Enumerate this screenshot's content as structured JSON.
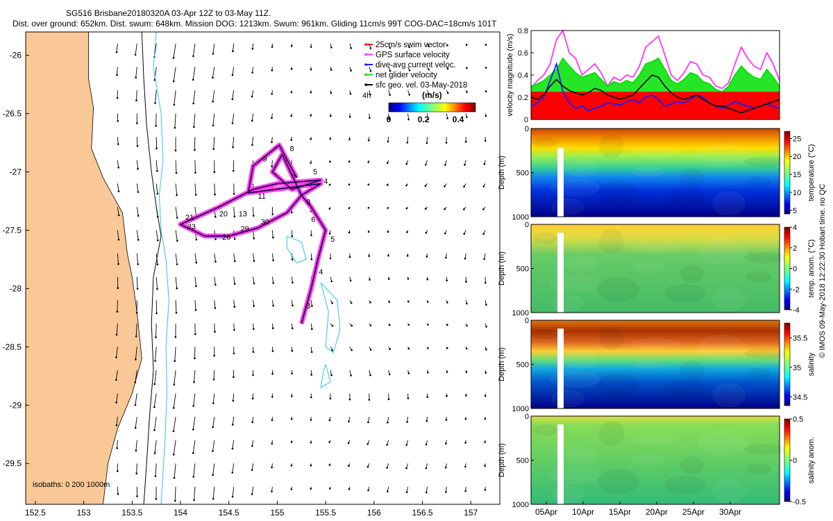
{
  "header": {
    "title_line1": "SG516 Brisbane20180320A 03-Apr 12Z to 03-May 11Z.",
    "title_line2": "Dist. over ground: 652km. Dist. swum: 648km. Mission DOG: 1213km. Swum: 961km. Gliding 11cm/s 99T COG-DAC=18cm/s 101T"
  },
  "footer": {
    "credit": "© IMOS 09-May-2018 12:22:30 Hobart time. no QC"
  },
  "colors": {
    "land": "#f9c896",
    "coast_line": "#000000",
    "isobath_200": "#000000",
    "isobath_1000": "#22c8ee",
    "swim_vector": "#ff0000",
    "gps_velocity": "#ff33ff",
    "dive_avg": "#1a1aff",
    "net_glider": "#00e000",
    "sfc_geo": "#000000"
  },
  "chart_data": [
    {
      "id": "map",
      "type": "scatter",
      "xlim": [
        152.4,
        157.3
      ],
      "ylim": [
        -29.85,
        -25.8
      ],
      "xticks": [
        152.5,
        153,
        153.5,
        154,
        154.5,
        155,
        155.5,
        156,
        156.5,
        157
      ],
      "xtick_labels": [
        "152.5",
        "153",
        "153.5",
        "154",
        "154.5",
        "155",
        "155.5",
        "156",
        "156.5",
        "157"
      ],
      "yticks": [
        -26,
        -26.5,
        -27,
        -27.5,
        -28,
        -28.5,
        -29,
        -29.5
      ],
      "ytick_labels": [
        "-26",
        "-26.5",
        "-27",
        "-27.5",
        "-28",
        "-28.5",
        "-29",
        "-29.5"
      ],
      "legend": {
        "placement": "top-right",
        "entries": [
          "25cm/s swim vector",
          "GPS surface velocity",
          "dive-avg current veloc.",
          "net glider velocity",
          "sfc geo. vel. 03-May-2018"
        ],
        "colors": [
          "#ff0000",
          "#ff33ff",
          "#1a1aff",
          "#00e000",
          "#000000"
        ]
      },
      "colorbar": {
        "label": "(m/s)",
        "ticks": [
          "0",
          "0.2",
          "0.4"
        ],
        "range": [
          0,
          0.5
        ],
        "note": "4h"
      },
      "isobath_note": "isobaths: 0   200   1000m",
      "coastline": [
        [
          153.05,
          -25.8
        ],
        [
          153.05,
          -26.2
        ],
        [
          153.1,
          -26.45
        ],
        [
          153.08,
          -26.8
        ],
        [
          153.2,
          -27.05
        ],
        [
          153.4,
          -27.35
        ],
        [
          153.45,
          -27.7
        ],
        [
          153.5,
          -27.9
        ],
        [
          153.55,
          -28.2
        ],
        [
          153.6,
          -28.6
        ],
        [
          153.5,
          -28.9
        ],
        [
          153.35,
          -29.2
        ],
        [
          153.25,
          -29.5
        ],
        [
          153.2,
          -29.85
        ]
      ],
      "isobath_200": [
        [
          153.6,
          -25.8
        ],
        [
          153.62,
          -26.2
        ],
        [
          153.65,
          -26.6
        ],
        [
          153.7,
          -27.0
        ],
        [
          153.75,
          -27.3
        ],
        [
          153.8,
          -27.55
        ],
        [
          153.72,
          -27.9
        ],
        [
          153.7,
          -28.3
        ],
        [
          153.72,
          -28.7
        ],
        [
          153.68,
          -29.1
        ],
        [
          153.65,
          -29.5
        ],
        [
          153.62,
          -29.85
        ]
      ],
      "isobath_1000": [
        [
          [
            153.75,
            -25.8
          ],
          [
            153.72,
            -26.1
          ],
          [
            153.8,
            -26.5
          ],
          [
            153.82,
            -26.9
          ],
          [
            153.78,
            -27.2
          ],
          [
            153.8,
            -27.5
          ],
          [
            153.85,
            -27.75
          ],
          [
            153.88,
            -28.1
          ],
          [
            153.85,
            -28.5
          ],
          [
            153.86,
            -28.9
          ],
          [
            153.84,
            -29.3
          ],
          [
            153.8,
            -29.85
          ]
        ],
        [
          [
            155.1,
            -27.55
          ],
          [
            155.25,
            -27.6
          ],
          [
            155.3,
            -27.75
          ],
          [
            155.2,
            -27.78
          ],
          [
            155.1,
            -27.65
          ],
          [
            155.1,
            -27.55
          ]
        ],
        [
          [
            155.45,
            -27.95
          ],
          [
            155.62,
            -28.1
          ],
          [
            155.65,
            -28.35
          ],
          [
            155.58,
            -28.55
          ],
          [
            155.5,
            -28.5
          ],
          [
            155.53,
            -28.2
          ],
          [
            155.45,
            -27.95
          ]
        ],
        [
          [
            155.5,
            -28.65
          ],
          [
            155.55,
            -28.8
          ],
          [
            155.45,
            -28.85
          ],
          [
            155.48,
            -28.7
          ],
          [
            155.5,
            -28.65
          ]
        ]
      ],
      "track": [
        [
          155.25,
          -28.3
        ],
        [
          155.35,
          -28.0
        ],
        [
          155.42,
          -27.75
        ],
        [
          155.5,
          -27.5
        ],
        [
          155.35,
          -27.3
        ],
        [
          155.25,
          -27.2
        ],
        [
          155.1,
          -27.35
        ],
        [
          154.8,
          -27.48
        ],
        [
          154.5,
          -27.55
        ],
        [
          154.25,
          -27.55
        ],
        [
          154.0,
          -27.45
        ],
        [
          154.4,
          -27.3
        ],
        [
          154.75,
          -27.15
        ],
        [
          155.0,
          -27.1
        ],
        [
          155.45,
          -27.07
        ],
        [
          155.15,
          -27.15
        ],
        [
          154.95,
          -27.0
        ],
        [
          155.05,
          -26.85
        ],
        [
          155.25,
          -27.2
        ],
        [
          155.45,
          -27.1
        ],
        [
          154.7,
          -27.18
        ],
        [
          154.75,
          -26.95
        ],
        [
          155.02,
          -26.77
        ],
        [
          155.2,
          -27.05
        ]
      ],
      "track_day_labels": [
        {
          "text": "3",
          "lon": 155.3,
          "lat": -28.17
        },
        {
          "text": "4",
          "lon": 155.43,
          "lat": -27.88
        },
        {
          "text": "5",
          "lon": 155.55,
          "lat": -27.6
        },
        {
          "text": "6",
          "lon": 155.35,
          "lat": -27.43
        },
        {
          "text": "3",
          "lon": 155.3,
          "lat": -27.28
        },
        {
          "text": "4",
          "lon": 155.48,
          "lat": -27.1
        },
        {
          "text": "7",
          "lon": 155.15,
          "lat": -27.07
        },
        {
          "text": "5",
          "lon": 155.37,
          "lat": -27.02
        },
        {
          "text": "8",
          "lon": 155.13,
          "lat": -26.82
        },
        {
          "text": "9",
          "lon": 154.85,
          "lat": -26.91
        },
        {
          "text": "11",
          "lon": 154.8,
          "lat": -27.23
        },
        {
          "text": "13",
          "lon": 154.6,
          "lat": -27.38
        },
        {
          "text": "20",
          "lon": 154.4,
          "lat": -27.38
        },
        {
          "text": "21",
          "lon": 154.05,
          "lat": -27.41
        },
        {
          "text": "23",
          "lon": 154.07,
          "lat": -27.49
        },
        {
          "text": "26",
          "lon": 154.43,
          "lat": -27.58
        },
        {
          "text": "29",
          "lon": 154.62,
          "lat": -27.51
        },
        {
          "text": "30",
          "lon": 154.83,
          "lat": -27.45
        }
      ]
    },
    {
      "id": "velocity",
      "type": "line",
      "ylabel": "velocity magnitude (m/s)",
      "ylim": [
        0,
        0.8
      ],
      "yticks": [
        "0",
        "0.2",
        "0.4",
        "0.6",
        "0.8"
      ],
      "series": [
        {
          "color": "#ff33ff",
          "values": [
            0.28,
            0.35,
            0.4,
            0.5,
            0.72,
            0.8,
            0.6,
            0.55,
            0.4,
            0.45,
            0.5,
            0.42,
            0.3,
            0.38,
            0.35,
            0.4,
            0.38,
            0.48,
            0.65,
            0.7,
            0.75,
            0.58,
            0.4,
            0.35,
            0.42,
            0.52,
            0.5,
            0.4,
            0.38,
            0.3,
            0.28,
            0.33,
            0.5,
            0.65,
            0.55,
            0.48,
            0.45,
            0.6,
            0.5,
            0.35
          ]
        },
        {
          "color": "#00e000",
          "values": [
            0.3,
            0.32,
            0.35,
            0.4,
            0.45,
            0.55,
            0.48,
            0.42,
            0.38,
            0.4,
            0.42,
            0.36,
            0.3,
            0.34,
            0.32,
            0.35,
            0.33,
            0.4,
            0.5,
            0.52,
            0.55,
            0.45,
            0.35,
            0.32,
            0.36,
            0.42,
            0.4,
            0.34,
            0.32,
            0.27,
            0.25,
            0.3,
            0.4,
            0.48,
            0.42,
            0.38,
            0.36,
            0.45,
            0.38,
            0.3
          ]
        },
        {
          "color": "#1a1aff",
          "values": [
            0.12,
            0.15,
            0.2,
            0.35,
            0.5,
            0.25,
            0.15,
            0.1,
            0.12,
            0.08,
            0.1,
            0.12,
            0.15,
            0.14,
            0.13,
            0.16,
            0.18,
            0.15,
            0.2,
            0.22,
            0.18,
            0.12,
            0.14,
            0.16,
            0.15,
            0.18,
            0.22,
            0.2,
            0.15,
            0.12,
            0.1,
            0.13,
            0.16,
            0.14,
            0.12,
            0.1,
            0.12,
            0.14,
            0.12,
            0.1
          ]
        },
        {
          "color": "#000000",
          "values": [
            0.2,
            0.18,
            0.22,
            0.3,
            0.36,
            0.3,
            0.26,
            0.24,
            0.22,
            0.24,
            0.28,
            0.26,
            0.22,
            0.2,
            0.18,
            0.2,
            0.22,
            0.28,
            0.34,
            0.4,
            0.38,
            0.3,
            0.24,
            0.2,
            0.18,
            0.2,
            0.22,
            0.18,
            0.15,
            0.12,
            0.12,
            0.1,
            0.08,
            0.06,
            0.08,
            0.1,
            0.12,
            0.14,
            0.16,
            0.18
          ]
        }
      ],
      "red_band_level": 0.25
    },
    {
      "id": "temperature",
      "type": "heatmap",
      "ylabel": "Depth (m)",
      "colorbar_label": "temperature (°C)",
      "colorbar_ticks": [
        "5",
        "10",
        "15",
        "20",
        "25"
      ],
      "crange": [
        4,
        27
      ],
      "ylim": [
        0,
        1000
      ],
      "yticks": [
        "0",
        "500",
        "1000"
      ]
    },
    {
      "id": "temp_anom",
      "type": "heatmap",
      "ylabel": "Depth (m)",
      "colorbar_label": "temp. anom. (°C)",
      "colorbar_ticks": [
        "-4",
        "-2",
        "0",
        "2",
        "4"
      ],
      "crange": [
        -4,
        4
      ],
      "ylim": [
        0,
        1000
      ],
      "yticks": [
        "0",
        "500",
        "1000"
      ]
    },
    {
      "id": "salinity",
      "type": "heatmap",
      "ylabel": "Depth (m)",
      "colorbar_label": "salinity",
      "colorbar_ticks": [
        "34.5",
        "35",
        "35.5"
      ],
      "crange": [
        34.35,
        35.75
      ],
      "ylim": [
        0,
        1000
      ],
      "yticks": [
        "0",
        "500",
        "1000"
      ]
    },
    {
      "id": "sal_anom",
      "type": "heatmap",
      "ylabel": "Depth (m)",
      "colorbar_label": "salinity anom.",
      "colorbar_ticks": [
        "-0.5",
        "0",
        "0.5"
      ],
      "crange": [
        -0.5,
        0.5
      ],
      "ylim": [
        0,
        1000
      ],
      "yticks": [
        "0",
        "500",
        "1000"
      ],
      "xtick_labels": [
        "05Apr",
        "10Apr",
        "15Apr",
        "20Apr",
        "25Apr",
        "30Apr"
      ]
    }
  ]
}
